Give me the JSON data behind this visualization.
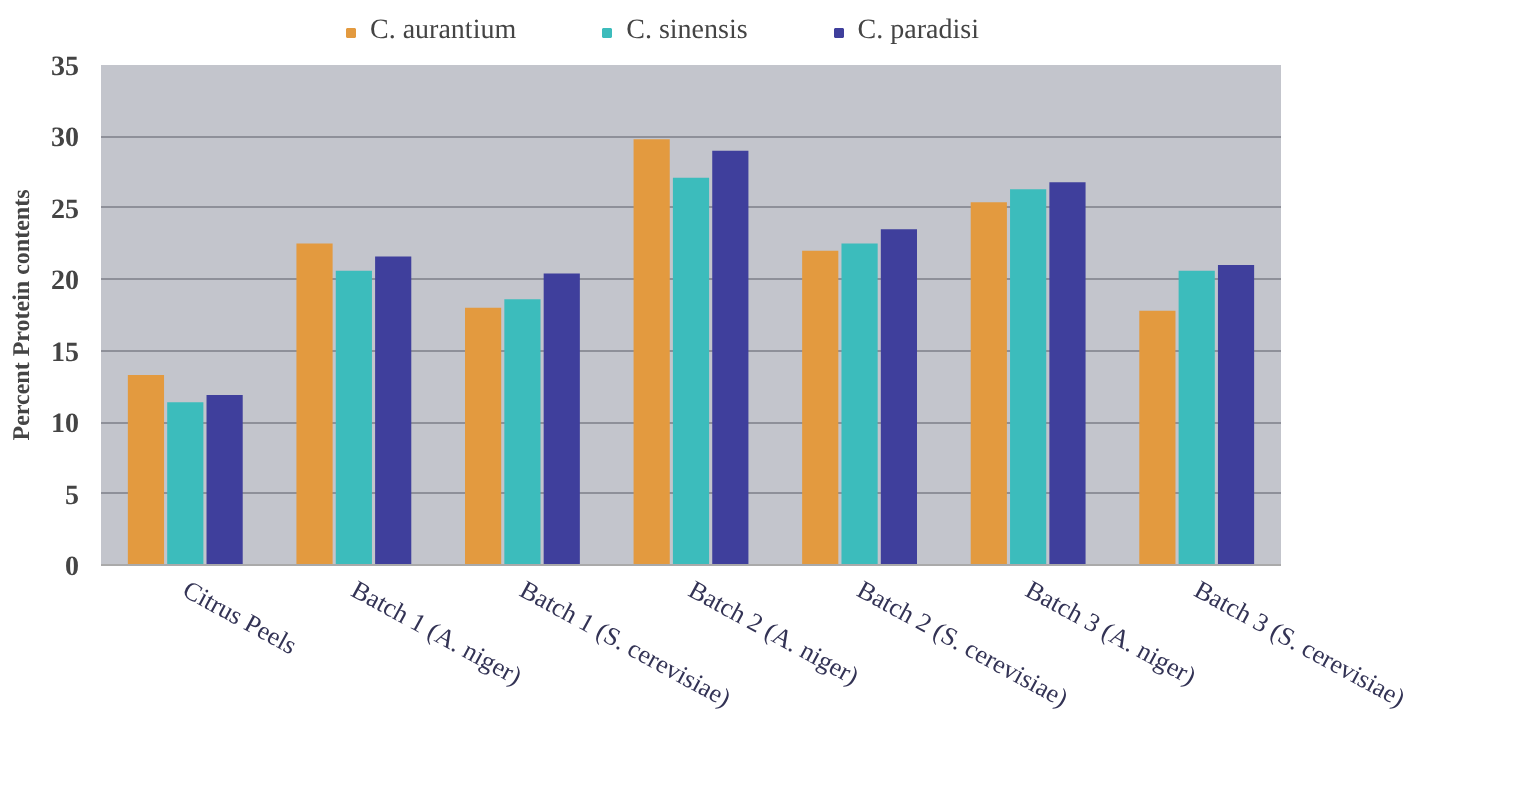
{
  "chart_data": {
    "type": "bar",
    "ylabel": "Percent Protein contents",
    "categories": [
      "Citrus Peels",
      "Batch 1 (A. niger)",
      "Batch 1 (S. cerevisiae)",
      "Batch 2 (A. niger)",
      "Batch 2 (S. cerevisiae)",
      "Batch 3 (A. niger)",
      "Batch 3 (S. cerevisiae)"
    ],
    "series": [
      {
        "name": "C. aurantium",
        "color": "#e39a3f",
        "values": [
          13.3,
          22.5,
          18.0,
          29.8,
          22.0,
          25.4,
          17.8
        ]
      },
      {
        "name": "C. sinensis",
        "color": "#3cbcbc",
        "values": [
          11.4,
          20.6,
          18.6,
          27.1,
          22.5,
          26.3,
          20.6
        ]
      },
      {
        "name": "C. paradisi",
        "color": "#3f3f9c",
        "values": [
          11.9,
          21.6,
          20.4,
          29.0,
          23.5,
          26.8,
          21.0
        ]
      }
    ],
    "ylim": [
      0,
      35
    ],
    "yticks": [
      0,
      5,
      10,
      15,
      20,
      25,
      30,
      35
    ],
    "grid": "y",
    "legend": "top"
  }
}
